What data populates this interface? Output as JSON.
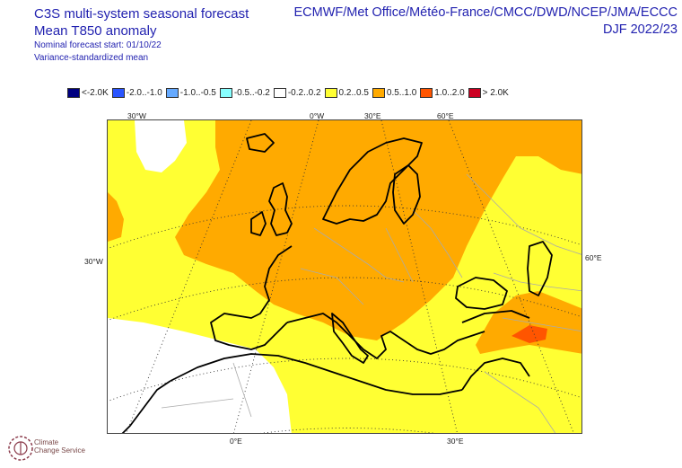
{
  "header": {
    "title_line1": "C3S multi-system seasonal forecast",
    "title_line2": "Mean T850 anomaly",
    "subtitle_line1": "Nominal forecast start: 01/10/22",
    "subtitle_line2": "Variance-standardized mean",
    "systems": "ECMWF/Met Office/Météo-France/CMCC/DWD/NCEP/JMA/ECCC",
    "season": "DJF 2022/23"
  },
  "legend": [
    {
      "label": "<-2.0K",
      "color": "#000080"
    },
    {
      "label": "-2.0..-1.0",
      "color": "#2a55ff"
    },
    {
      "label": "-1.0..-0.5",
      "color": "#66aaff"
    },
    {
      "label": "-0.5..-0.2",
      "color": "#88ffff"
    },
    {
      "label": "-0.2..0.2",
      "color": "#ffffff"
    },
    {
      "label": "0.2..0.5",
      "color": "#ffff33"
    },
    {
      "label": "0.5..1.0",
      "color": "#ffaa00"
    },
    {
      "label": "1.0..2.0",
      "color": "#ff5500"
    },
    {
      "label": "> 2.0K",
      "color": "#cc0022"
    }
  ],
  "axis_labels": {
    "top": [
      "30°W",
      "0°W",
      "30°E",
      "60°E"
    ],
    "left": "30°W",
    "right": "60°E",
    "bottom": [
      "0°E",
      "30°E"
    ]
  },
  "logo": {
    "name": "climate-change-service-logo",
    "line1": "Climate",
    "line2": "Change Service"
  }
}
